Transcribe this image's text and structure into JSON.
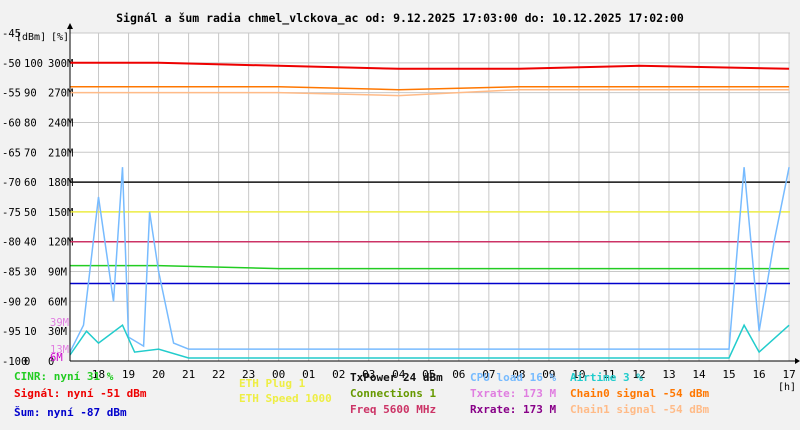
{
  "title": "Signál a šum radia chmel_vlckova_ac od: 9.12.2025 17:03:00 do: 10.12.2025 17:02:00",
  "axis_units": {
    "dbm": "[dBm]",
    "pct": "[%]",
    "hours": "[h]"
  },
  "y_ticks": [
    {
      "dbm": "-45",
      "pct": "",
      "rate": ""
    },
    {
      "dbm": "-50",
      "pct": "100",
      "rate": "300M"
    },
    {
      "dbm": "-55",
      "pct": "90",
      "rate": "270M"
    },
    {
      "dbm": "-60",
      "pct": "80",
      "rate": "240M"
    },
    {
      "dbm": "-65",
      "pct": "70",
      "rate": "210M"
    },
    {
      "dbm": "-70",
      "pct": "60",
      "rate": "180M"
    },
    {
      "dbm": "-75",
      "pct": "50",
      "rate": "150M"
    },
    {
      "dbm": "-80",
      "pct": "40",
      "rate": "120M"
    },
    {
      "dbm": "-85",
      "pct": "30",
      "rate": "90M"
    },
    {
      "dbm": "-90",
      "pct": "20",
      "rate": "60M"
    },
    {
      "dbm": "-95",
      "pct": "10",
      "rate": "30M"
    },
    {
      "dbm": "-100",
      "pct": "0",
      "rate": "0"
    }
  ],
  "side_markers": [
    {
      "text": "39M",
      "color": "#e07ee0",
      "value_dbm": -93.5
    },
    {
      "text": "13M",
      "color": "#e07ee0",
      "value_dbm": -98
    },
    {
      "text": "6M",
      "color": "#cc00cc",
      "value_dbm": -99.3
    }
  ],
  "x_ticks": [
    "18",
    "19",
    "20",
    "21",
    "22",
    "23",
    "00",
    "01",
    "02",
    "03",
    "04",
    "05",
    "06",
    "07",
    "08",
    "09",
    "10",
    "11",
    "12",
    "13",
    "14",
    "15",
    "16",
    "17"
  ],
  "legend": [
    {
      "text": "CINR: nyní 31 %",
      "color": "#22cc22"
    },
    {
      "text": "Signál: nyní -51 dBm",
      "color": "#ee0000"
    },
    {
      "text": "Šum: nyní -87 dBm",
      "color": "#0000cc"
    },
    {
      "text": "ETH Plug 1",
      "color": "#eeee44"
    },
    {
      "text": "ETH Speed 1000",
      "color": "#eeee44"
    },
    {
      "text": "TxPower 24 dBm",
      "color": "#111111"
    },
    {
      "text": "Connections 1",
      "color": "#669900"
    },
    {
      "text": "Freq 5600 MHz",
      "color": "#cc3366"
    },
    {
      "text": "CPU load 16 %",
      "color": "#77bbff"
    },
    {
      "text": "Txrate: 173 M",
      "color": "#e07ee0"
    },
    {
      "text": "Rxrate: 173 M",
      "color": "#880088"
    },
    {
      "text": "Airtime 3 %",
      "color": "#22cccc"
    },
    {
      "text": "Chain0 signal -54 dBm",
      "color": "#ff7700"
    },
    {
      "text": "Chain1 signal -54 dBm",
      "color": "#ffbb88"
    }
  ],
  "chart_data": {
    "type": "line",
    "title": "Signál a šum radia chmel_vlckova_ac od: 9.12.2025 17:03:00 do: 10.12.2025 17:02:00",
    "xlabel": "[h]",
    "ylabel": "[dBm] [%]",
    "x_range": [
      17.05,
      41.03
    ],
    "ylim_dbm": [
      -100,
      -45
    ],
    "grid": true,
    "series": [
      {
        "name": "Signál",
        "color": "#ee0000",
        "unit": "dBm",
        "current": -51,
        "points": [
          [
            17.05,
            -50
          ],
          [
            20,
            -50
          ],
          [
            24,
            -50.5
          ],
          [
            28,
            -51
          ],
          [
            32,
            -51
          ],
          [
            36,
            -50.5
          ],
          [
            41,
            -51
          ]
        ]
      },
      {
        "name": "Chain0 signal",
        "color": "#ff7700",
        "unit": "dBm",
        "current": -54,
        "points": [
          [
            17.05,
            -54
          ],
          [
            24,
            -54
          ],
          [
            28,
            -54.5
          ],
          [
            32,
            -54
          ],
          [
            36,
            -54
          ],
          [
            41,
            -54
          ]
        ]
      },
      {
        "name": "Chain1 signal",
        "color": "#ffbb88",
        "unit": "dBm",
        "current": -54,
        "points": [
          [
            17.05,
            -55
          ],
          [
            24,
            -55
          ],
          [
            28,
            -55.5
          ],
          [
            32,
            -54.5
          ],
          [
            36,
            -54.5
          ],
          [
            41,
            -54.5
          ]
        ]
      },
      {
        "name": "Šum",
        "color": "#0000cc",
        "unit": "dBm",
        "current": -87,
        "points": [
          [
            17.05,
            -87
          ],
          [
            41.03,
            -87
          ]
        ]
      },
      {
        "name": "CINR",
        "color": "#22cc22",
        "unit": "%",
        "current": 31,
        "points": [
          [
            17.05,
            32
          ],
          [
            20,
            32
          ],
          [
            24,
            31
          ],
          [
            28,
            31
          ],
          [
            32,
            31
          ],
          [
            36,
            31
          ],
          [
            41,
            31
          ]
        ]
      },
      {
        "name": "TxPower",
        "color": "#111111",
        "unit": "dBm",
        "current": 24,
        "points": [
          [
            17.05,
            -70
          ],
          [
            41.03,
            -70
          ]
        ]
      },
      {
        "name": "ETH Speed",
        "color": "#eeee44",
        "current": 1000,
        "points": [
          [
            17.05,
            -75
          ],
          [
            41.03,
            -75
          ]
        ]
      },
      {
        "name": "Freq",
        "color": "#cc3366",
        "unit": "MHz",
        "current": 5600,
        "points": [
          [
            17.05,
            -80
          ],
          [
            41.03,
            -80
          ]
        ]
      },
      {
        "name": "CPU load",
        "color": "#77bbff",
        "unit": "%",
        "current": 16,
        "points": [
          [
            17.05,
            3
          ],
          [
            17.5,
            12
          ],
          [
            18,
            55
          ],
          [
            18.5,
            20
          ],
          [
            18.8,
            65
          ],
          [
            19,
            8
          ],
          [
            19.5,
            5
          ],
          [
            19.7,
            50
          ],
          [
            20,
            30
          ],
          [
            20.5,
            6
          ],
          [
            21,
            4
          ],
          [
            24,
            4
          ],
          [
            28,
            4
          ],
          [
            32,
            4
          ],
          [
            36,
            4
          ],
          [
            39,
            4
          ],
          [
            39.5,
            65
          ],
          [
            40,
            10
          ],
          [
            40.5,
            40
          ],
          [
            41,
            65
          ]
        ]
      },
      {
        "name": "Airtime",
        "color": "#22cccc",
        "unit": "%",
        "current": 3,
        "points": [
          [
            17.05,
            2
          ],
          [
            17.6,
            10
          ],
          [
            18,
            6
          ],
          [
            18.8,
            12
          ],
          [
            19.2,
            3
          ],
          [
            20,
            4
          ],
          [
            21,
            1
          ],
          [
            24,
            1
          ],
          [
            30,
            1
          ],
          [
            36,
            1
          ],
          [
            39,
            1
          ],
          [
            39.5,
            12
          ],
          [
            40,
            3
          ],
          [
            41,
            12
          ]
        ]
      },
      {
        "name": "Connections",
        "color": "#669900",
        "current": 1,
        "points": [
          [
            17.05,
            1
          ],
          [
            41.03,
            1
          ]
        ]
      }
    ]
  }
}
